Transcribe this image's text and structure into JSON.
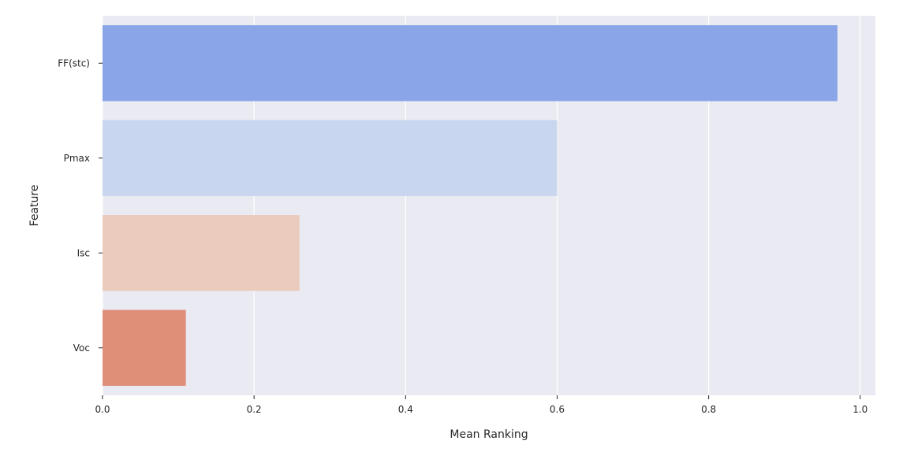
{
  "chart_data": {
    "type": "bar",
    "orientation": "horizontal",
    "categories": [
      "FF(stc)",
      "Pmax",
      "Isc",
      "Voc"
    ],
    "values": [
      0.97,
      0.6,
      0.26,
      0.11
    ],
    "colors": [
      "#8aa5e8",
      "#c8d6ef",
      "#eacbbd",
      "#df8e78"
    ],
    "title": "",
    "xlabel": "Mean Ranking",
    "ylabel": "Feature",
    "xlim": [
      0,
      1.02
    ],
    "xticks": [
      {
        "value": 0.0,
        "label": "0.0"
      },
      {
        "value": 0.2,
        "label": "0.2"
      },
      {
        "value": 0.4,
        "label": "0.4"
      },
      {
        "value": 0.6,
        "label": "0.6"
      },
      {
        "value": 0.8,
        "label": "0.8"
      },
      {
        "value": 1.0,
        "label": "1.0"
      }
    ],
    "grid": true,
    "background": "#eaeaf2",
    "grid_color": "#ffffff"
  }
}
